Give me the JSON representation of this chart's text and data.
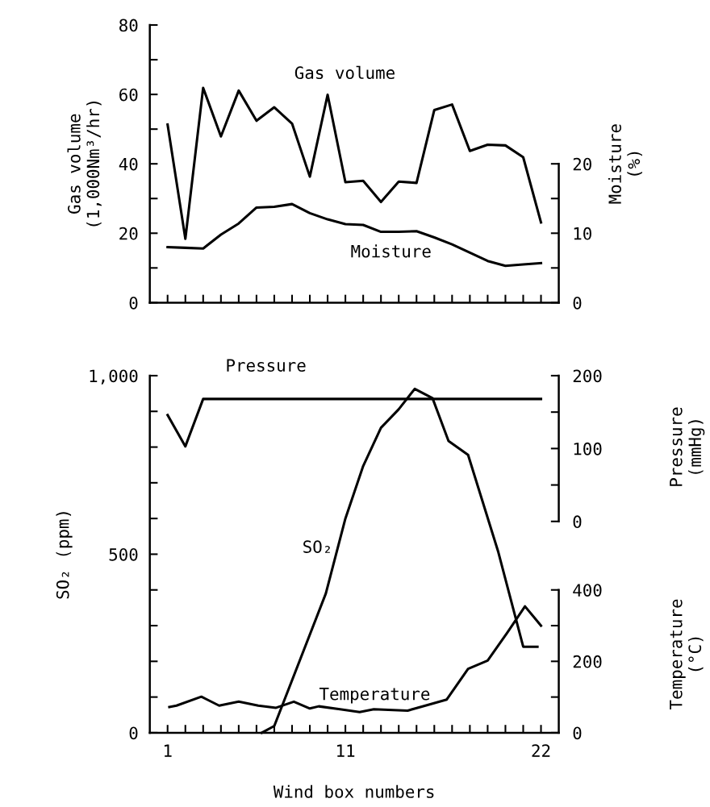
{
  "chart_data": [
    {
      "type": "line",
      "x": [
        1,
        2,
        3,
        4,
        5,
        6,
        7,
        8,
        9,
        10,
        11,
        12,
        13,
        14,
        15,
        16,
        17,
        18,
        19,
        20,
        21,
        22
      ],
      "series": [
        {
          "name": "Gas volume",
          "color": "#000000",
          "values": [
            51.3,
            18.4,
            61.9,
            47.9,
            61.1,
            52.4,
            56.3,
            51.6,
            36.3,
            59.9,
            34.7,
            35.1,
            29.0,
            34.9,
            34.5,
            55.5,
            57.1,
            43.7,
            45.5,
            45.3,
            41.9,
            23.1
          ]
        },
        {
          "name": "Moisture",
          "color": "#000000",
          "axis": "y2",
          "values": [
            8.0,
            7.9,
            7.8,
            9.8,
            11.4,
            13.7,
            13.8,
            14.2,
            12.9,
            12.0,
            11.3,
            11.2,
            10.2,
            10.2,
            10.3,
            9.4,
            8.4,
            7.2,
            6.0,
            5.3,
            5.5,
            5.7
          ]
        }
      ],
      "xlim": [
        0,
        23
      ],
      "xticks": [
        {
          "value": 1,
          "label": null
        },
        {
          "value": 2,
          "label": null
        },
        {
          "value": 3,
          "label": null
        },
        {
          "value": 4,
          "label": null
        },
        {
          "value": 5,
          "label": null
        },
        {
          "value": 6,
          "label": null
        },
        {
          "value": 7,
          "label": null
        },
        {
          "value": 8,
          "label": null
        },
        {
          "value": 9,
          "label": null
        },
        {
          "value": 10,
          "label": null
        },
        {
          "value": 11,
          "label": null
        },
        {
          "value": 12,
          "label": null
        },
        {
          "value": 13,
          "label": null
        },
        {
          "value": 14,
          "label": null
        },
        {
          "value": 15,
          "label": null
        },
        {
          "value": 16,
          "label": null
        },
        {
          "value": 17,
          "label": null
        },
        {
          "value": 18,
          "label": null
        },
        {
          "value": 19,
          "label": null
        },
        {
          "value": 20,
          "label": null
        },
        {
          "value": 21,
          "label": null
        },
        {
          "value": 22,
          "label": null
        }
      ],
      "ylim": [
        0,
        80
      ],
      "yticks": [
        0,
        {
          "value": 10,
          "label": null
        },
        20,
        {
          "value": 30,
          "label": null
        },
        40,
        {
          "value": 50,
          "label": null
        },
        60,
        {
          "value": 70,
          "label": null
        },
        80
      ],
      "y2lim": [
        0,
        40
      ],
      "y2ticks": [
        0,
        {
          "value": 5,
          "label": null
        },
        10,
        {
          "value": 15,
          "label": null
        },
        20
      ],
      "ylabel": "Gas volume\n(1,000Nm³/hr)",
      "y2label": "Moisture\n(%)",
      "tick_labels": "y",
      "marker": "none",
      "line_style": "solid",
      "grid": false,
      "legend": false
    },
    {
      "type": "line",
      "series": [
        {
          "name": "SO₂",
          "color": "#000000",
          "x": [
            6.3,
            7,
            9.9,
            11,
            12,
            13,
            14,
            14.9,
            15.9,
            16.8,
            17.9,
            19.6,
            21,
            21.8
          ],
          "values": [
            0,
            19,
            390,
            600,
            747,
            854,
            906,
            963,
            937,
            817,
            778,
            506,
            241,
            241
          ]
        },
        {
          "name": "Pressure",
          "color": "#000000",
          "axis": "y2",
          "x": [
            1,
            2,
            3,
            22
          ],
          "values": [
            146,
            103,
            168,
            168
          ]
        },
        {
          "name": "Temperature",
          "color": "#000000",
          "axis": "y3",
          "x": [
            1.1,
            1.5,
            2.9,
            3.9,
            5.0,
            6.1,
            7.1,
            8.1,
            9.0,
            9.5,
            10.7,
            11.8,
            12.6,
            14.5,
            15.5,
            16.7,
            17.9,
            19.0,
            20.1,
            21.1,
            22.0
          ],
          "values": [
            72,
            76,
            101,
            76,
            87,
            76,
            70,
            87,
            68,
            74,
            66,
            58,
            66,
            62,
            76,
            93,
            179,
            202,
            280,
            354,
            300
          ]
        }
      ],
      "xlim": [
        0,
        23
      ],
      "xticks": [
        1,
        {
          "value": 2,
          "label": null
        },
        {
          "value": 3,
          "label": null
        },
        {
          "value": 4,
          "label": null
        },
        {
          "value": 5,
          "label": null
        },
        {
          "value": 6,
          "label": null
        },
        {
          "value": 7,
          "label": null
        },
        {
          "value": 8,
          "label": null
        },
        {
          "value": 9,
          "label": null
        },
        {
          "value": 10,
          "label": null
        },
        11,
        {
          "value": 12,
          "label": null
        },
        {
          "value": 13,
          "label": null
        },
        {
          "value": 14,
          "label": null
        },
        {
          "value": 15,
          "label": null
        },
        {
          "value": 16,
          "label": null
        },
        {
          "value": 17,
          "label": null
        },
        {
          "value": 18,
          "label": null
        },
        {
          "value": 19,
          "label": null
        },
        {
          "value": 20,
          "label": null
        },
        {
          "value": 21,
          "label": null
        },
        22
      ],
      "ylim": [
        0,
        1000
      ],
      "yticks": [
        0,
        {
          "value": 100,
          "label": null
        },
        {
          "value": 200,
          "label": null
        },
        {
          "value": 300,
          "label": null
        },
        {
          "value": 400,
          "label": null
        },
        500,
        {
          "value": 600,
          "label": null
        },
        {
          "value": 700,
          "label": null
        },
        {
          "value": 800,
          "label": null
        },
        {
          "value": 900,
          "label": null
        },
        {
          "value": 1000,
          "label": "1,000"
        }
      ],
      "y2lim": [
        -290,
        200
      ],
      "y2ticks": [
        0,
        {
          "value": 50,
          "label": null
        },
        100,
        {
          "value": 150,
          "label": null
        },
        200
      ],
      "y3lim": [
        0,
        1000
      ],
      "y3ticks": [
        0,
        {
          "value": 100,
          "label": null
        },
        200,
        {
          "value": 300,
          "label": null
        },
        400
      ],
      "xlabel": "Wind box numbers",
      "ylabel": "SO₂ (ppm)",
      "y2label": "Pressure\n(mmHg)",
      "y3label": "Temperature\n(°C)",
      "marker": "none",
      "line_style": "solid",
      "grid": false,
      "legend": false
    }
  ]
}
